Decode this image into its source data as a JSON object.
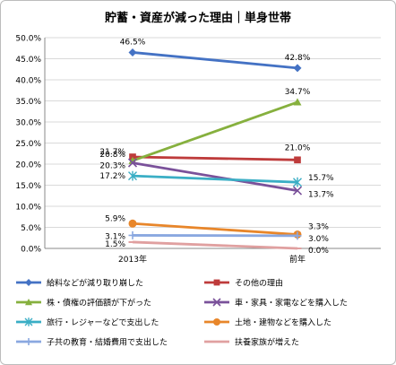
{
  "chart_data": {
    "type": "line",
    "title": "貯蓄・資産が減った理由｜単身世帯",
    "categories": [
      "2013年",
      "前年"
    ],
    "ylim": [
      0,
      50
    ],
    "yticks": [
      "0.0%",
      "5.0%",
      "10.0%",
      "15.0%",
      "20.0%",
      "25.0%",
      "30.0%",
      "35.0%",
      "40.0%",
      "45.0%",
      "50.0%"
    ],
    "grid": true,
    "legend_placement": "bottom",
    "series": [
      {
        "name": "給料などが減り取り崩した",
        "values": [
          46.5,
          42.8
        ],
        "labels": [
          "46.5%",
          "42.8%"
        ],
        "color": "#4472c4",
        "marker": "diamond"
      },
      {
        "name": "その他の理由",
        "values": [
          21.7,
          21.0
        ],
        "labels": [
          "21.7%",
          "21.0%"
        ],
        "color": "#be3b3b",
        "marker": "square"
      },
      {
        "name": "株・債権の評価額が下がった",
        "values": [
          20.8,
          34.7
        ],
        "labels": [
          "20.8%",
          "34.7%"
        ],
        "color": "#86b03e",
        "marker": "triangle"
      },
      {
        "name": "車・家具・家電などを購入した",
        "values": [
          20.3,
          13.7
        ],
        "labels": [
          "20.3%",
          "13.7%"
        ],
        "color": "#7a519a",
        "marker": "x"
      },
      {
        "name": "旅行・レジャーなどで支出した",
        "values": [
          17.2,
          15.7
        ],
        "labels": [
          "17.2%",
          "15.7%"
        ],
        "color": "#3aaec5",
        "marker": "asterisk"
      },
      {
        "name": "土地・建物などを購入した",
        "values": [
          5.9,
          3.3
        ],
        "labels": [
          "5.9%",
          "3.3%"
        ],
        "color": "#e8862a",
        "marker": "circle"
      },
      {
        "name": "子共の教育・結婚費用で支出した",
        "values": [
          3.1,
          3.0
        ],
        "labels": [
          "3.1%",
          "3.0%"
        ],
        "color": "#8aa8e0",
        "marker": "plus"
      },
      {
        "name": "扶養家族が増えた",
        "values": [
          1.5,
          0.0
        ],
        "labels": [
          "1.5%",
          "0.0%"
        ],
        "color": "#e0a0a0",
        "marker": "dash"
      }
    ]
  }
}
